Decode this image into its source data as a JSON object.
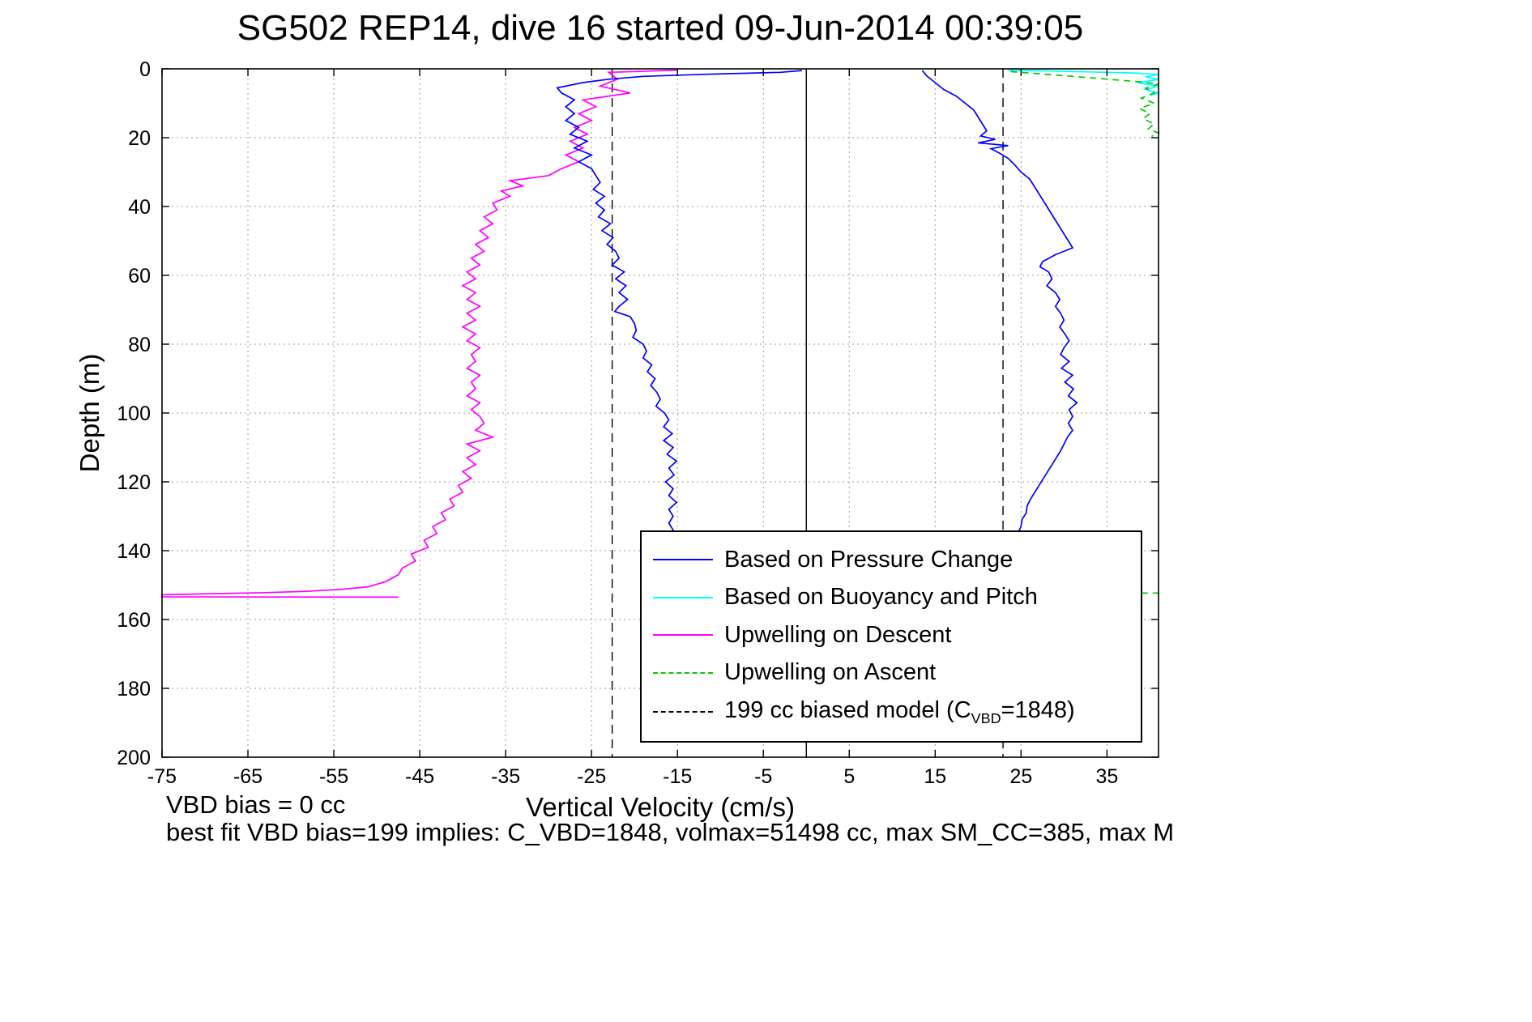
{
  "footer": {
    "vbd_bias": "VBD bias = 0 cc",
    "best_fit": "best fit VBD bias=199 implies: C_VBD=1848, volmax=51498 cc, max SM_CC=385, max M"
  },
  "chart_data": {
    "type": "line",
    "title": "SG502 REP14, dive 16 started 09-Jun-2014 00:39:05",
    "xlabel": "Vertical Velocity (cm/s)",
    "ylabel": "Depth (m)",
    "xlim": [
      -75,
      41
    ],
    "ylim": [
      0,
      200
    ],
    "y_axis_direction": "reversed",
    "grid": true,
    "xticks": [
      -75,
      -65,
      -55,
      -45,
      -35,
      -25,
      -15,
      -5,
      5,
      15,
      25,
      35
    ],
    "yticks": [
      0,
      20,
      40,
      60,
      80,
      100,
      120,
      140,
      160,
      180,
      200
    ],
    "ref_lines": [
      {
        "name": "zero-line",
        "x": 0,
        "color": "#000000",
        "style": "solid"
      },
      {
        "name": "model-descent-line",
        "x": -22.6,
        "color": "#000000",
        "style": "dashed"
      },
      {
        "name": "model-ascent-line",
        "x": 22.9,
        "color": "#000000",
        "style": "dashed"
      }
    ],
    "legend": {
      "position": "inside-lower-middle-right",
      "entries": [
        {
          "label": "Based on Pressure Change",
          "color": "#0000ff",
          "style": "solid"
        },
        {
          "label": "Based on Buoyancy and Pitch",
          "color": "#00ffff",
          "style": "solid"
        },
        {
          "label": "Upwelling on Descent",
          "color": "#ff00ff",
          "style": "solid"
        },
        {
          "label": "Upwelling on Ascent",
          "color": "#00cc00",
          "style": "dashed"
        },
        {
          "label_pre": "199 cc biased model (C",
          "label_sub": "VBD",
          "label_post": "=1848)",
          "color": "#000000",
          "style": "dashed"
        }
      ]
    },
    "series": [
      {
        "name": "upwelling-descent",
        "legend": "Upwelling on Descent",
        "color": "#ff00ff",
        "style": "solid",
        "points": [
          [
            -15,
            0.4
          ],
          [
            -23,
            1
          ],
          [
            -22,
            3
          ],
          [
            -24,
            5
          ],
          [
            -20.5,
            7
          ],
          [
            -26,
            9
          ],
          [
            -24.5,
            11
          ],
          [
            -26.5,
            13
          ],
          [
            -25,
            15
          ],
          [
            -27,
            17
          ],
          [
            -25.5,
            19
          ],
          [
            -27.5,
            21
          ],
          [
            -26,
            23
          ],
          [
            -28,
            25
          ],
          [
            -26.5,
            27
          ],
          [
            -28.5,
            29
          ],
          [
            -30,
            31
          ],
          [
            -34.5,
            32.5
          ],
          [
            -33,
            34
          ],
          [
            -35.5,
            35.5
          ],
          [
            -34.5,
            37
          ],
          [
            -36.5,
            39
          ],
          [
            -36,
            41
          ],
          [
            -37.5,
            43
          ],
          [
            -36.5,
            45
          ],
          [
            -38,
            47
          ],
          [
            -37,
            49
          ],
          [
            -38.5,
            51
          ],
          [
            -37.5,
            53
          ],
          [
            -39,
            55
          ],
          [
            -38,
            57
          ],
          [
            -39.5,
            59
          ],
          [
            -38.5,
            61
          ],
          [
            -40,
            63
          ],
          [
            -38.5,
            65
          ],
          [
            -39.5,
            67
          ],
          [
            -38,
            69
          ],
          [
            -39.5,
            71
          ],
          [
            -38.5,
            73
          ],
          [
            -40,
            75
          ],
          [
            -38.5,
            77
          ],
          [
            -39.5,
            79
          ],
          [
            -38,
            81
          ],
          [
            -39,
            83
          ],
          [
            -38.5,
            85
          ],
          [
            -39.5,
            87
          ],
          [
            -38,
            89
          ],
          [
            -39,
            91
          ],
          [
            -38.5,
            93
          ],
          [
            -39.5,
            95
          ],
          [
            -38,
            97
          ],
          [
            -39,
            99
          ],
          [
            -38,
            101
          ],
          [
            -37.5,
            103
          ],
          [
            -38.5,
            105
          ],
          [
            -36.5,
            107
          ],
          [
            -39.5,
            109
          ],
          [
            -38,
            111
          ],
          [
            -39.5,
            113
          ],
          [
            -38.5,
            115
          ],
          [
            -40,
            117
          ],
          [
            -39,
            119
          ],
          [
            -40.5,
            121
          ],
          [
            -40,
            123
          ],
          [
            -41.5,
            125
          ],
          [
            -41,
            127
          ],
          [
            -42.5,
            129
          ],
          [
            -42,
            131
          ],
          [
            -43.5,
            133
          ],
          [
            -43,
            135
          ],
          [
            -44.5,
            137
          ],
          [
            -44,
            139
          ],
          [
            -46,
            141
          ],
          [
            -45.5,
            143
          ],
          [
            -47,
            145
          ],
          [
            -47.5,
            147
          ],
          [
            -49,
            149
          ],
          [
            -51,
            150.5
          ],
          [
            -54,
            151.2
          ],
          [
            -58,
            151.8
          ],
          [
            -63,
            152.2
          ],
          [
            -69,
            152.5
          ],
          [
            -75,
            152.8
          ],
          [
            -75,
            153.4
          ],
          [
            -47.5,
            153.5
          ]
        ]
      },
      {
        "name": "pressure-descent",
        "legend": "Based on Pressure Change",
        "color": "#0000ff",
        "style": "solid",
        "points": [
          [
            -0.5,
            0.5
          ],
          [
            -3,
            1
          ],
          [
            -12,
            1.6
          ],
          [
            -19,
            2.2
          ],
          [
            -23,
            3
          ],
          [
            -26,
            4
          ],
          [
            -29,
            5.5
          ],
          [
            -28.5,
            7
          ],
          [
            -27,
            9
          ],
          [
            -28,
            11
          ],
          [
            -27,
            13
          ],
          [
            -28,
            15
          ],
          [
            -26.5,
            17
          ],
          [
            -27.5,
            19
          ],
          [
            -25.5,
            21
          ],
          [
            -27,
            23
          ],
          [
            -25,
            25
          ],
          [
            -26.5,
            27
          ],
          [
            -25,
            29
          ],
          [
            -24.5,
            31
          ],
          [
            -24,
            33
          ],
          [
            -24.8,
            35
          ],
          [
            -23.5,
            37
          ],
          [
            -24.5,
            39
          ],
          [
            -23.5,
            41
          ],
          [
            -24.2,
            43
          ],
          [
            -22.8,
            45
          ],
          [
            -23.8,
            47
          ],
          [
            -22.5,
            49
          ],
          [
            -23.2,
            51
          ],
          [
            -22.2,
            53
          ],
          [
            -21.8,
            55
          ],
          [
            -22.6,
            57
          ],
          [
            -21.2,
            59
          ],
          [
            -22.2,
            61
          ],
          [
            -21,
            63
          ],
          [
            -21.8,
            65
          ],
          [
            -20.8,
            67
          ],
          [
            -21.8,
            69
          ],
          [
            -22.3,
            70.5
          ],
          [
            -20.5,
            72
          ],
          [
            -20,
            74
          ],
          [
            -19.8,
            76
          ],
          [
            -20.2,
            78
          ],
          [
            -19,
            80
          ],
          [
            -18.6,
            82
          ],
          [
            -19,
            84
          ],
          [
            -18,
            86
          ],
          [
            -18.5,
            88
          ],
          [
            -17.6,
            90
          ],
          [
            -18.1,
            92
          ],
          [
            -17.4,
            94
          ],
          [
            -17,
            96
          ],
          [
            -17.5,
            98
          ],
          [
            -16.5,
            100
          ],
          [
            -16,
            102
          ],
          [
            -16.6,
            104
          ],
          [
            -15.6,
            106
          ],
          [
            -16.6,
            108
          ],
          [
            -15.5,
            110
          ],
          [
            -16.2,
            112
          ],
          [
            -15.1,
            114
          ],
          [
            -16,
            116
          ],
          [
            -15.4,
            118
          ],
          [
            -16.4,
            120
          ],
          [
            -15.5,
            122
          ],
          [
            -16,
            124
          ],
          [
            -15.1,
            126
          ],
          [
            -16,
            128
          ],
          [
            -15.5,
            130
          ],
          [
            -16,
            132
          ],
          [
            -15.5,
            134
          ],
          [
            -15.8,
            136
          ]
        ]
      },
      {
        "name": "pressure-ascent",
        "legend": "Based on Pressure Change",
        "color": "#0000ff",
        "style": "solid",
        "points": [
          [
            13.5,
            0.5
          ],
          [
            14,
            2
          ],
          [
            15,
            4
          ],
          [
            16,
            6
          ],
          [
            17.5,
            8
          ],
          [
            18.5,
            10
          ],
          [
            19.5,
            12
          ],
          [
            20,
            14
          ],
          [
            20.5,
            16
          ],
          [
            21,
            18
          ],
          [
            20.3,
            19.5
          ],
          [
            22,
            20.5
          ],
          [
            20,
            21.5
          ],
          [
            23.5,
            22.3
          ],
          [
            21.5,
            23.2
          ],
          [
            22.5,
            24.5
          ],
          [
            23.5,
            26
          ],
          [
            24.3,
            28
          ],
          [
            25,
            30
          ],
          [
            26,
            32
          ],
          [
            26.5,
            34
          ],
          [
            27,
            36
          ],
          [
            27.5,
            38
          ],
          [
            28,
            40
          ],
          [
            28.5,
            42
          ],
          [
            29,
            44
          ],
          [
            29.5,
            46
          ],
          [
            30,
            48
          ],
          [
            30.5,
            50
          ],
          [
            31,
            52
          ],
          [
            29,
            54
          ],
          [
            27.5,
            56
          ],
          [
            27.2,
            57.5
          ],
          [
            28.2,
            59
          ],
          [
            28.6,
            61
          ],
          [
            28,
            63
          ],
          [
            29,
            65
          ],
          [
            29.5,
            67
          ],
          [
            29,
            69
          ],
          [
            29.6,
            71
          ],
          [
            30,
            73
          ],
          [
            29.5,
            75
          ],
          [
            30.1,
            77
          ],
          [
            30.6,
            79
          ],
          [
            30,
            81
          ],
          [
            29.6,
            83
          ],
          [
            30.6,
            85
          ],
          [
            29.7,
            87
          ],
          [
            31,
            89
          ],
          [
            30.1,
            91
          ],
          [
            31.1,
            93
          ],
          [
            30.5,
            95
          ],
          [
            31.5,
            97
          ],
          [
            30.6,
            99
          ],
          [
            31,
            101
          ],
          [
            30.5,
            103
          ],
          [
            31,
            105
          ],
          [
            30.4,
            107
          ],
          [
            30,
            109
          ],
          [
            29.6,
            111
          ],
          [
            29.1,
            113
          ],
          [
            28.6,
            115
          ],
          [
            28.1,
            117
          ],
          [
            27.6,
            119
          ],
          [
            27.1,
            121
          ],
          [
            26.6,
            123
          ],
          [
            26.1,
            125
          ],
          [
            25.7,
            127
          ],
          [
            25.6,
            129
          ],
          [
            25.1,
            131
          ],
          [
            25,
            133
          ],
          [
            24.6,
            135
          ]
        ]
      },
      {
        "name": "buoyancy-pitch",
        "legend": "Based on Buoyancy and Pitch",
        "color": "#00ffff",
        "style": "solid",
        "points": [
          [
            23.5,
            0.4
          ],
          [
            28,
            0.6
          ],
          [
            33,
            0.9
          ],
          [
            38,
            1.2
          ],
          [
            41,
            1.6
          ],
          [
            39.5,
            2.3
          ],
          [
            41,
            3.1
          ],
          [
            38.5,
            4
          ],
          [
            41,
            5
          ],
          [
            39.5,
            6
          ],
          [
            41,
            7
          ],
          [
            40,
            7.7
          ]
        ]
      },
      {
        "name": "upwelling-ascent",
        "legend": "Upwelling on Ascent",
        "color": "#00cc00",
        "style": "dashed",
        "points": [
          [
            23.8,
            0.8
          ],
          [
            27,
            1.4
          ],
          [
            30,
            2
          ],
          [
            33,
            2.6
          ],
          [
            36,
            3.2
          ],
          [
            39,
            3.8
          ],
          [
            41,
            4.4
          ],
          [
            39.5,
            5.6
          ],
          [
            40.5,
            7
          ],
          [
            39,
            8.5
          ],
          [
            40.5,
            10
          ],
          [
            38.8,
            11.5
          ],
          [
            40,
            13
          ],
          [
            39.2,
            14.5
          ],
          [
            40.5,
            16
          ],
          [
            39.8,
            17.5
          ],
          [
            41,
            18.6
          ],
          [
            40.2,
            19.6
          ]
        ]
      },
      {
        "name": "upwelling-ascent-deep",
        "legend": "Upwelling on Ascent",
        "color": "#00cc00",
        "style": "dashed",
        "points": [
          [
            39,
            152.3
          ],
          [
            41,
            152.3
          ]
        ]
      }
    ]
  }
}
